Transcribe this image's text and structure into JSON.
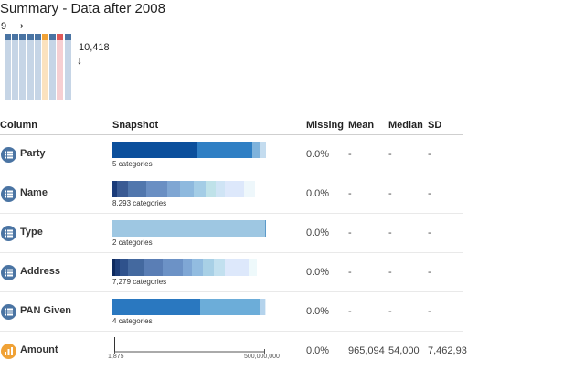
{
  "title": "Summary - Data after 2008",
  "dims": {
    "columns": "9",
    "rows": "10,418",
    "col_arrow": "⟶",
    "row_arrow": "↓"
  },
  "mini_columns": [
    {
      "head": "#4a74a3",
      "body": "#c6d5e6"
    },
    {
      "head": "#4a74a3",
      "body": "#c6d5e6"
    },
    {
      "head": "#4a74a3",
      "body": "#c6d5e6"
    },
    {
      "head": "#4a74a3",
      "body": "#c6d5e6"
    },
    {
      "head": "#4a74a3",
      "body": "#c6d5e6"
    },
    {
      "head": "#f0a236",
      "body": "#fbe2bf"
    },
    {
      "head": "#4a74a3",
      "body": "#c6d5e6"
    },
    {
      "head": "#e05a5a",
      "body": "#f6cfd2"
    },
    {
      "head": "#4a74a3",
      "body": "#c6d5e6"
    }
  ],
  "headers": {
    "column": "Column",
    "snapshot": "Snapshot",
    "missing": "Missing",
    "mean": "Mean",
    "median": "Median",
    "sd": "SD"
  },
  "rows": [
    {
      "name": "Party",
      "icon": "list-icon",
      "icon_color": "#4a74a3",
      "categories_label": "5 categories",
      "segments": [
        {
          "w": 0.55,
          "color": "#0b4f9c"
        },
        {
          "w": 0.36,
          "color": "#2f7fc4"
        },
        {
          "w": 0.05,
          "color": "#7fb3dc"
        },
        {
          "w": 0.04,
          "color": "#c4dcef"
        }
      ],
      "missing": "0.0%",
      "mean": "-",
      "median": "-",
      "sd": "-"
    },
    {
      "name": "Name",
      "icon": "list-icon",
      "icon_color": "#4a74a3",
      "categories_label": "8,293 categories",
      "segments": [
        {
          "w": 0.03,
          "color": "#1b3c7a"
        },
        {
          "w": 0.07,
          "color": "#3a5b94"
        },
        {
          "w": 0.12,
          "color": "#5177ad"
        },
        {
          "w": 0.14,
          "color": "#6a8fc3"
        },
        {
          "w": 0.08,
          "color": "#7fa6d3"
        },
        {
          "w": 0.09,
          "color": "#8eb9de"
        },
        {
          "w": 0.08,
          "color": "#a4cde6"
        },
        {
          "w": 0.06,
          "color": "#bfe2e9"
        },
        {
          "w": 0.06,
          "color": "#cfe4f5"
        },
        {
          "w": 0.13,
          "color": "#dde8fb"
        },
        {
          "w": 0.07,
          "color": "#eef7fb"
        },
        {
          "w": 0.07,
          "color": "#ffffff"
        }
      ],
      "missing": "0.0%",
      "mean": "-",
      "median": "-",
      "sd": "-"
    },
    {
      "name": "Type",
      "icon": "list-icon",
      "icon_color": "#4a74a3",
      "categories_label": "2 categories",
      "segments": [
        {
          "w": 0.995,
          "color": "#9ec7e2"
        },
        {
          "w": 0.005,
          "color": "#5c9ac9"
        }
      ],
      "missing": "0.0%",
      "mean": "-",
      "median": "-",
      "sd": "-"
    },
    {
      "name": "Address",
      "icon": "list-icon",
      "icon_color": "#4a74a3",
      "categories_label": "7,279 categories",
      "segments": [
        {
          "w": 0.02,
          "color": "#0e2a5e"
        },
        {
          "w": 0.03,
          "color": "#1e3e78"
        },
        {
          "w": 0.05,
          "color": "#2f528c"
        },
        {
          "w": 0.1,
          "color": "#44699f"
        },
        {
          "w": 0.13,
          "color": "#5a7eb5"
        },
        {
          "w": 0.13,
          "color": "#6c92c6"
        },
        {
          "w": 0.06,
          "color": "#7fa7d5"
        },
        {
          "w": 0.07,
          "color": "#92bce0"
        },
        {
          "w": 0.07,
          "color": "#a8d0e6"
        },
        {
          "w": 0.07,
          "color": "#c2e0ef"
        },
        {
          "w": 0.16,
          "color": "#dde8fb"
        },
        {
          "w": 0.05,
          "color": "#eef9fb"
        },
        {
          "w": 0.06,
          "color": "#ffffff"
        }
      ],
      "missing": "0.0%",
      "mean": "-",
      "median": "-",
      "sd": "-"
    },
    {
      "name": "PAN Given",
      "icon": "list-icon",
      "icon_color": "#4a74a3",
      "categories_label": "4 categories",
      "segments": [
        {
          "w": 0.57,
          "color": "#2a78c0"
        },
        {
          "w": 0.39,
          "color": "#6cadd9"
        },
        {
          "w": 0.035,
          "color": "#b4d3ec"
        },
        {
          "w": 0.005,
          "color": "#e2eef8"
        }
      ],
      "missing": "0.0%",
      "mean": "-",
      "median": "-",
      "sd": "-"
    },
    {
      "name": "Amount",
      "icon": "bar-chart-icon",
      "icon_color": "#f0a236",
      "numeric": true,
      "axis_min": "1,875",
      "axis_max": "500,000,000",
      "missing": "0.0%",
      "mean": "965,094",
      "median": "54,000",
      "sd": "7,462,93"
    }
  ]
}
